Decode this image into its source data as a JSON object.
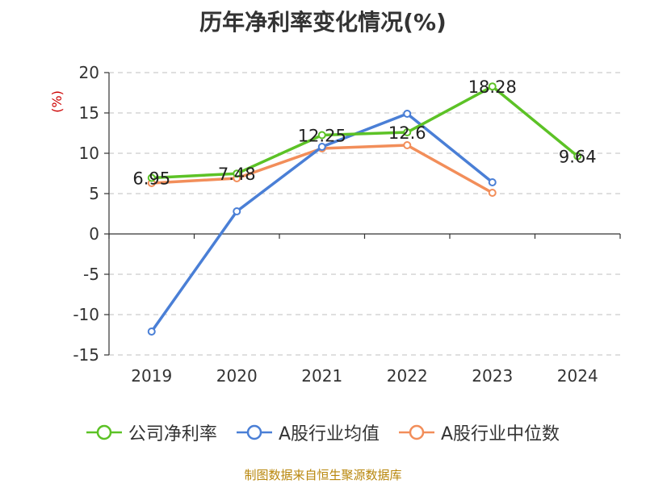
{
  "chart_data": {
    "type": "line",
    "title": "历年净利率变化情况(%)",
    "ylabel": "(%)",
    "xlabel": "",
    "categories": [
      "2019",
      "2020",
      "2021",
      "2022",
      "2023",
      "2024"
    ],
    "ylim": [
      -15,
      20
    ],
    "yticks": [
      -15,
      -10,
      -5,
      0,
      5,
      10,
      15,
      20
    ],
    "grid": true,
    "legend_position": "bottom",
    "series": [
      {
        "name": "公司净利率",
        "color": "#5cc226",
        "values": [
          6.95,
          7.48,
          12.25,
          12.6,
          18.28,
          9.64
        ],
        "data_labels": [
          "6.95",
          "7.48",
          "12.25",
          "12.6",
          "18.28",
          "9.64"
        ]
      },
      {
        "name": "A股行业均值",
        "color": "#4a7fd6",
        "values": [
          -12.1,
          2.8,
          10.8,
          14.9,
          6.4,
          null
        ]
      },
      {
        "name": "A股行业中位数",
        "color": "#f28e5a",
        "values": [
          6.3,
          6.9,
          10.6,
          11.0,
          5.1,
          null
        ]
      }
    ]
  },
  "source_note": "制图数据来自恒生聚源数据库"
}
